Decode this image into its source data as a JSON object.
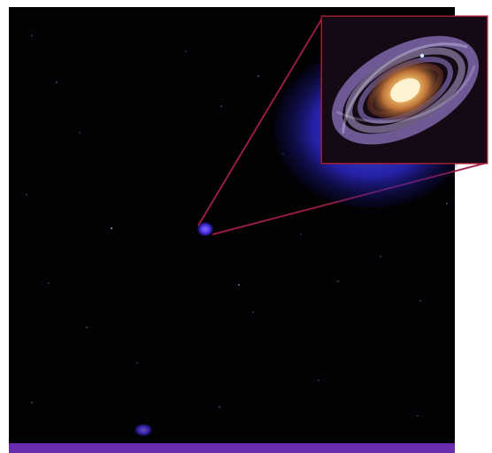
{
  "colors": {
    "sky": "#020104",
    "bottom_band": "#6a2fb0",
    "callout_line": "#9b1f4a",
    "inset_frame": "#9e1d2f",
    "nebula": "#2e2bd6",
    "galaxy_core": "#ffe6a8",
    "galaxy_arms": "#b89bff"
  },
  "icons": {
    "galaxy": "spiral-galaxy",
    "source": "blue-blob",
    "stars": "star-dots"
  }
}
